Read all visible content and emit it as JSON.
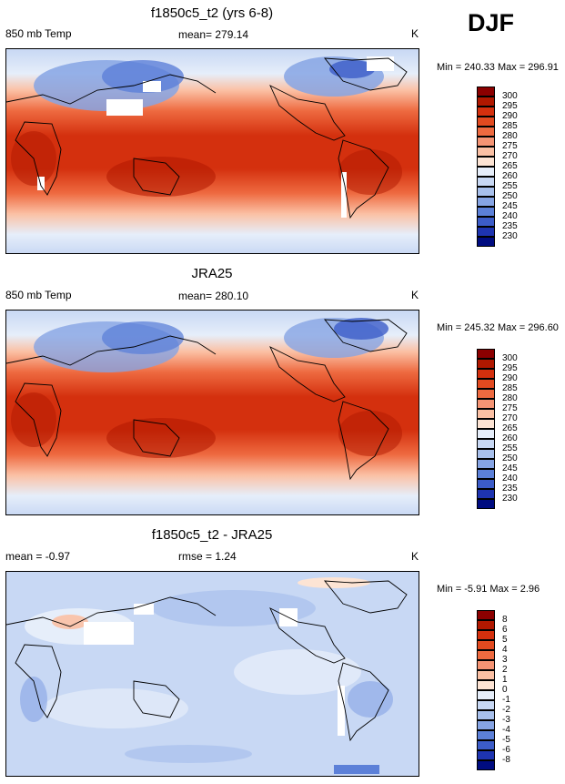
{
  "season": "DJF",
  "panels": [
    {
      "title": "f1850c5_t2 (yrs 6-8)",
      "left_label": "850 mb Temp",
      "center_label": "mean= 279.14",
      "unit": "K",
      "minmax": "Min = 240.33 Max = 296.91",
      "colorbar": {
        "labels": [
          "300",
          "295",
          "290",
          "285",
          "280",
          "275",
          "270",
          "265",
          "260",
          "255",
          "250",
          "245",
          "240",
          "235",
          "230"
        ],
        "colors": [
          "#8b0000",
          "#b01800",
          "#d4300e",
          "#e24a20",
          "#ee6a40",
          "#f59474",
          "#fbc0a4",
          "#fde4d4",
          "#e6eefa",
          "#c8d8f4",
          "#a8c0ec",
          "#86a4e4",
          "#5c80d8",
          "#3c5cc8",
          "#1e34b0",
          "#000c80"
        ]
      }
    },
    {
      "title": "JRA25",
      "left_label": "850 mb Temp",
      "center_label": "mean= 280.10",
      "unit": "K",
      "minmax": "Min = 245.32 Max = 296.60",
      "colorbar": {
        "labels": [
          "300",
          "295",
          "290",
          "285",
          "280",
          "275",
          "270",
          "265",
          "260",
          "255",
          "250",
          "245",
          "240",
          "235",
          "230"
        ],
        "colors": [
          "#8b0000",
          "#b01800",
          "#d4300e",
          "#e24a20",
          "#ee6a40",
          "#f59474",
          "#fbc0a4",
          "#fde4d4",
          "#e6eefa",
          "#c8d8f4",
          "#a8c0ec",
          "#86a4e4",
          "#5c80d8",
          "#3c5cc8",
          "#1e34b0",
          "#000c80"
        ]
      }
    },
    {
      "title": "f1850c5_t2 - JRA25",
      "left_label": "mean = -0.97",
      "center_label": "rmse =   1.24",
      "unit": "K",
      "minmax": "Min =  -5.91 Max =   2.96",
      "colorbar": {
        "labels": [
          "8",
          "6",
          "5",
          "4",
          "3",
          "2",
          "1",
          "0",
          "-1",
          "-2",
          "-3",
          "-4",
          "-5",
          "-6",
          "-8"
        ],
        "colors": [
          "#8b0000",
          "#b01800",
          "#d4300e",
          "#e24a20",
          "#ee6a40",
          "#f59474",
          "#fbc0a4",
          "#fde4d4",
          "#e6eefa",
          "#c8d8f4",
          "#a8c0ec",
          "#86a4e4",
          "#5c80d8",
          "#3c5cc8",
          "#1e34b0",
          "#000c80"
        ]
      }
    }
  ]
}
